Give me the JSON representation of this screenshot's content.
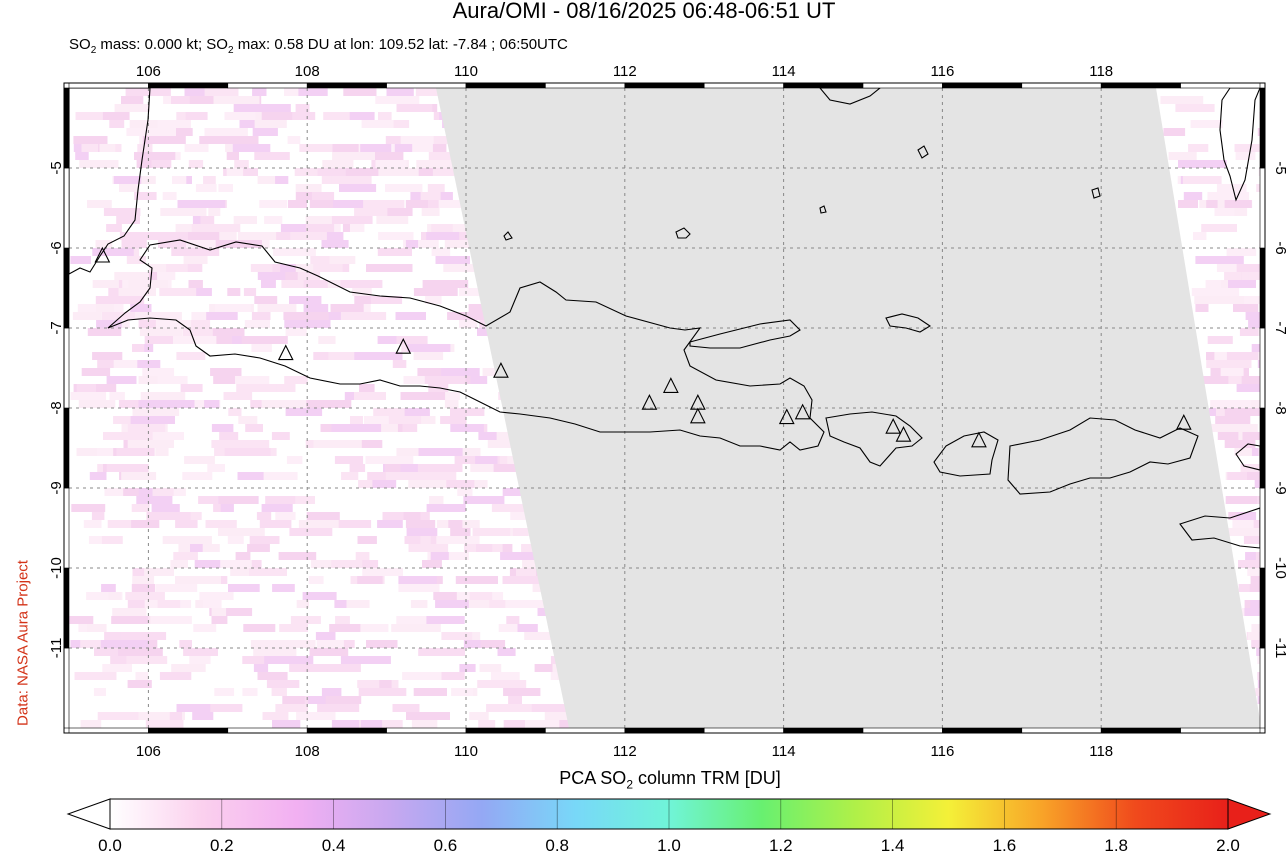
{
  "header": {
    "title": "Aura/OMI - 08/16/2025 06:48-06:51 UT",
    "subtitle_parts": [
      "SO",
      "2",
      " mass: 0.000 kt; SO",
      "2",
      " max: 0.58 DU at lon: 109.52 lat: -7.84 ; 06:50UTC"
    ]
  },
  "credit": "Data: NASA Aura Project",
  "map": {
    "lon_range": [
      105,
      120
    ],
    "lat_range": [
      -12,
      -4
    ],
    "lon_ticks": [
      "106",
      "108",
      "110",
      "112",
      "114",
      "116",
      "118"
    ],
    "lat_ticks": [
      "-5",
      "-6",
      "-7",
      "-8",
      "-9",
      "-10",
      "-11"
    ],
    "no_data_color": "#e4e4e4",
    "volcanoes": [
      {
        "lon": 105.42,
        "lat": -6.1
      },
      {
        "lon": 107.73,
        "lat": -7.32
      },
      {
        "lon": 109.21,
        "lat": -7.24
      },
      {
        "lon": 110.44,
        "lat": -7.54
      },
      {
        "lon": 112.31,
        "lat": -7.94
      },
      {
        "lon": 112.58,
        "lat": -7.73
      },
      {
        "lon": 112.92,
        "lat": -7.94
      },
      {
        "lon": 112.92,
        "lat": -8.11
      },
      {
        "lon": 114.04,
        "lat": -8.12
      },
      {
        "lon": 114.24,
        "lat": -8.06
      },
      {
        "lon": 115.38,
        "lat": -8.24
      },
      {
        "lon": 115.51,
        "lat": -8.34
      },
      {
        "lon": 116.46,
        "lat": -8.41
      },
      {
        "lon": 119.04,
        "lat": -8.19
      }
    ]
  },
  "colorbar": {
    "title_parts": [
      "PCA SO",
      "2",
      " column TRM [DU]"
    ],
    "range": [
      0.0,
      2.0
    ],
    "labels": [
      "0.0",
      "0.2",
      "0.4",
      "0.6",
      "0.8",
      "1.0",
      "1.2",
      "1.4",
      "1.6",
      "1.8",
      "2.0"
    ],
    "colors": [
      "#ffffff",
      "#fbd0ee",
      "#f2b0f2",
      "#c8a8f0",
      "#94a8f4",
      "#78d8f8",
      "#70f4d8",
      "#68f070",
      "#b0f048",
      "#f4f038",
      "#f8a428",
      "#f04a1c",
      "#e8201a"
    ]
  }
}
